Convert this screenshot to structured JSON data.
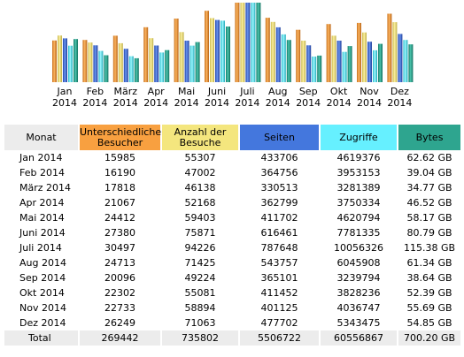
{
  "colors": {
    "visitors": "#f8a040",
    "visits": "#f4e67e",
    "pages": "#4477dd",
    "hits": "#66f0ff",
    "bytes": "#2ea58f",
    "header_label_bg": "#ececec",
    "total_bg": "#ececec"
  },
  "chart_data": {
    "type": "bar",
    "categories": [
      [
        "Jan",
        "2014"
      ],
      [
        "Feb",
        "2014"
      ],
      [
        "März",
        "2014"
      ],
      [
        "Apr",
        "2014"
      ],
      [
        "Mai",
        "2014"
      ],
      [
        "Juni",
        "2014"
      ],
      [
        "Juli",
        "2014"
      ],
      [
        "Aug",
        "2014"
      ],
      [
        "Sep",
        "2014"
      ],
      [
        "Okt",
        "2014"
      ],
      [
        "Nov",
        "2014"
      ],
      [
        "Dez",
        "2014"
      ]
    ],
    "series": [
      {
        "key": "visitors",
        "values": [
          15985,
          16190,
          17818,
          21067,
          24412,
          27380,
          30497,
          24713,
          20096,
          22302,
          22733,
          26249
        ]
      },
      {
        "key": "visits",
        "values": [
          55307,
          47002,
          46138,
          52168,
          59403,
          75871,
          94226,
          71425,
          49224,
          55081,
          58894,
          71063
        ]
      },
      {
        "key": "pages",
        "values": [
          433706,
          364756,
          330513,
          362799,
          411702,
          616461,
          787648,
          543757,
          365101,
          411452,
          401125,
          477702
        ]
      },
      {
        "key": "hits",
        "values": [
          4619376,
          3953153,
          3281389,
          3750334,
          4620794,
          7781335,
          10056326,
          6045908,
          3239794,
          3828236,
          4036747,
          5343475
        ]
      },
      {
        "key": "bytes",
        "values": [
          62.62,
          39.04,
          34.77,
          46.52,
          58.17,
          80.79,
          115.38,
          61.34,
          38.64,
          52.39,
          55.69,
          54.85
        ]
      }
    ]
  },
  "table": {
    "headers": [
      {
        "label": "Monat",
        "color": "#ececec"
      },
      {
        "label": "Unterschiedliche Besucher",
        "color": "#f8a040"
      },
      {
        "label": "Anzahl der Besuche",
        "color": "#f4e67e"
      },
      {
        "label": "Seiten",
        "color": "#4477dd"
      },
      {
        "label": "Zugriffe",
        "color": "#66f0ff"
      },
      {
        "label": "Bytes",
        "color": "#2ea58f"
      }
    ],
    "rows": [
      [
        "Jan 2014",
        "15985",
        "55307",
        "433706",
        "4619376",
        "62.62 GB"
      ],
      [
        "Feb 2014",
        "16190",
        "47002",
        "364756",
        "3953153",
        "39.04 GB"
      ],
      [
        "März 2014",
        "17818",
        "46138",
        "330513",
        "3281389",
        "34.77 GB"
      ],
      [
        "Apr 2014",
        "21067",
        "52168",
        "362799",
        "3750334",
        "46.52 GB"
      ],
      [
        "Mai 2014",
        "24412",
        "59403",
        "411702",
        "4620794",
        "58.17 GB"
      ],
      [
        "Juni 2014",
        "27380",
        "75871",
        "616461",
        "7781335",
        "80.79 GB"
      ],
      [
        "Juli 2014",
        "30497",
        "94226",
        "787648",
        "10056326",
        "115.38 GB"
      ],
      [
        "Aug 2014",
        "24713",
        "71425",
        "543757",
        "6045908",
        "61.34 GB"
      ],
      [
        "Sep 2014",
        "20096",
        "49224",
        "365101",
        "3239794",
        "38.64 GB"
      ],
      [
        "Okt 2014",
        "22302",
        "55081",
        "411452",
        "3828236",
        "52.39 GB"
      ],
      [
        "Nov 2014",
        "22733",
        "58894",
        "401125",
        "4036747",
        "55.69 GB"
      ],
      [
        "Dez 2014",
        "26249",
        "71063",
        "477702",
        "5343475",
        "54.85 GB"
      ]
    ],
    "total": [
      "Total",
      "269442",
      "735802",
      "5506722",
      "60556867",
      "700.20 GB"
    ]
  }
}
